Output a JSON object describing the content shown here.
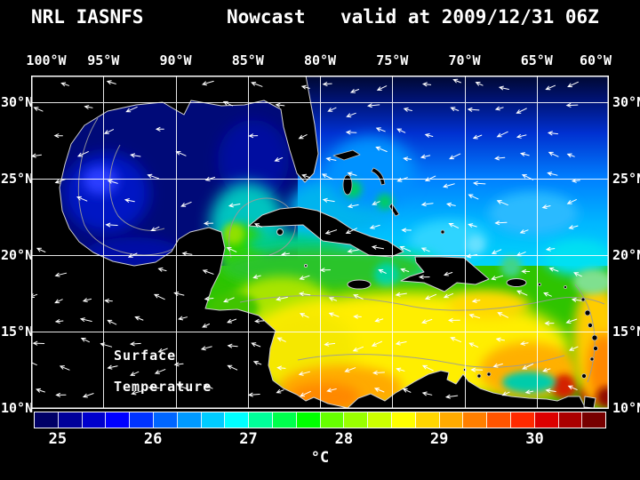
{
  "title": {
    "left": "NRL IASNFS",
    "center": "Nowcast",
    "right": "valid at 2009/12/31 06Z"
  },
  "map": {
    "annotation": {
      "line1": "Surface",
      "line2": "Temperature"
    },
    "lon_ticks": [
      {
        "label": "100°W",
        "value": 100
      },
      {
        "label": "95°W",
        "value": 95
      },
      {
        "label": "90°W",
        "value": 90
      },
      {
        "label": "85°W",
        "value": 85
      },
      {
        "label": "80°W",
        "value": 80
      },
      {
        "label": "75°W",
        "value": 75
      },
      {
        "label": "70°W",
        "value": 70
      },
      {
        "label": "65°W",
        "value": 65
      },
      {
        "label": "60°W",
        "value": 60
      }
    ],
    "lat_ticks": [
      {
        "label": "30°N",
        "value": 30
      },
      {
        "label": "25°N",
        "value": 25
      },
      {
        "label": "20°N",
        "value": 20
      },
      {
        "label": "15°N",
        "value": 15
      },
      {
        "label": "10°N",
        "value": 10
      }
    ],
    "grid_color": "#ffffff",
    "vector_color": "#ffffff",
    "contour_color": "#9a9a9a",
    "land_color": "#000000",
    "coastline_color": "#d0d0d0"
  },
  "colorbar": {
    "unit": "°C",
    "min": 24.75,
    "max": 30.75,
    "step": 0.25,
    "tick_labels": [
      "25",
      "26",
      "27",
      "28",
      "29",
      "30"
    ],
    "tick_values": [
      25,
      26,
      27,
      28,
      29,
      30
    ],
    "colors": [
      "#000066",
      "#000099",
      "#0000cc",
      "#0000ff",
      "#0033ff",
      "#0066ff",
      "#0099ff",
      "#00ccff",
      "#00ffff",
      "#00ff99",
      "#00ff4d",
      "#00ff00",
      "#66ff00",
      "#99ff00",
      "#ccff00",
      "#ffff00",
      "#ffd500",
      "#ffaa00",
      "#ff7f00",
      "#ff5500",
      "#ff2a00",
      "#dd0000",
      "#aa0000",
      "#770000"
    ]
  },
  "chart_data": {
    "type": "heatmap",
    "title": "NRL IASNFS Nowcast valid at 2009/12/31 06Z",
    "variable": "Surface Temperature",
    "unit": "°C",
    "lon_range_deg_w": [
      100,
      60
    ],
    "lat_range_deg_n": [
      10,
      31.7
    ],
    "colorbar_min": 24.75,
    "colorbar_max": 30.75,
    "colorbar_step": 0.25,
    "colorbar_ticks": [
      25,
      26,
      27,
      28,
      29,
      30
    ],
    "overlays": [
      "surface current vectors (white arrows)",
      "gray ocean contours",
      "white 5-degree lat/lon grid"
    ],
    "regional_values_c": {
      "gulf_of_mexico": 25,
      "western_gulf_patch": 25.5,
      "loop_current_yucatan": 27,
      "florida_strait": 27,
      "bahamas_atlantic": 26.5,
      "open_atlantic_25n": 26.5,
      "atlantic_above_30n": 25,
      "nw_caribbean": 27.5,
      "central_caribbean": 28,
      "sw_caribbean_panama": 28.7,
      "eastern_caribbean": 28.5,
      "se_corner_near_venezuela": 29.5
    }
  }
}
